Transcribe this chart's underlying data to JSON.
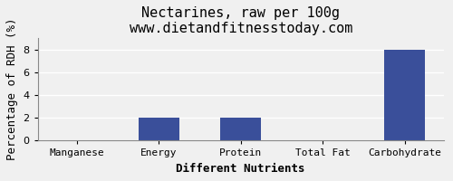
{
  "title": "Nectarines, raw per 100g",
  "subtitle": "www.dietandfitnesstoday.com",
  "categories": [
    "Manganese",
    "Energy",
    "Protein",
    "Total Fat",
    "Carbohydrate"
  ],
  "values": [
    0.0,
    2.0,
    2.0,
    0.05,
    8.0
  ],
  "bar_color": "#3a4f9a",
  "xlabel": "Different Nutrients",
  "ylabel": "Percentage of RDH (%)",
  "ylim": [
    0,
    9
  ],
  "yticks": [
    0,
    2,
    4,
    6,
    8
  ],
  "background_color": "#f0f0f0",
  "title_fontsize": 11,
  "subtitle_fontsize": 9,
  "axis_label_fontsize": 9,
  "tick_fontsize": 8
}
